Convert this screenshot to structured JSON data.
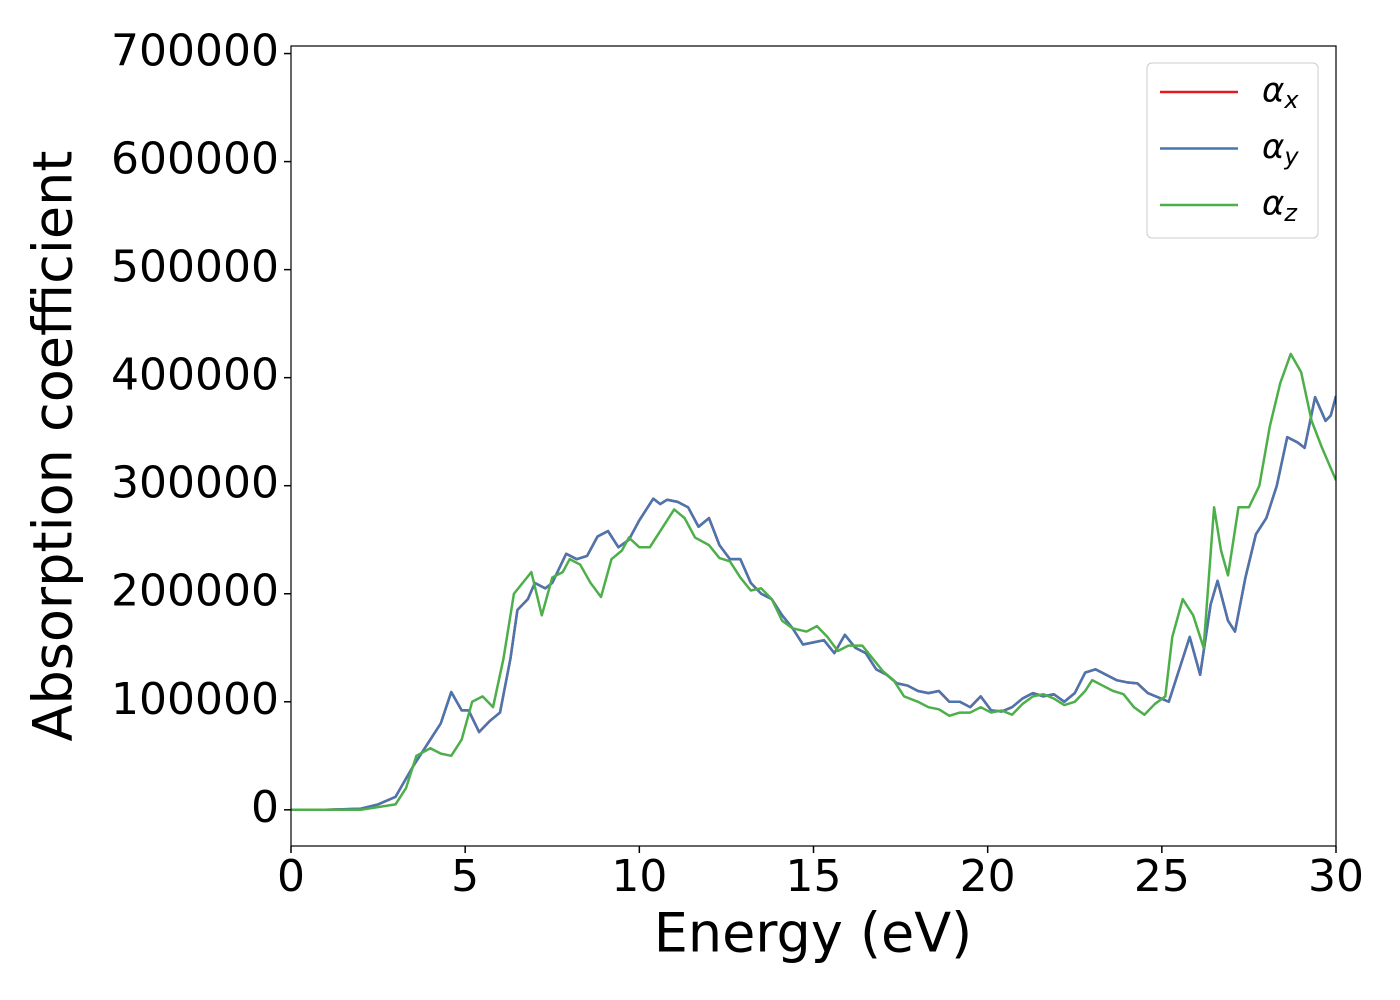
{
  "chart_data": {
    "type": "line",
    "xlabel": "Energy (eV)",
    "ylabel": "Absorption coefficient",
    "xlim": [
      0,
      30
    ],
    "ylim": [
      -33500,
      707000
    ],
    "xticks": [
      0,
      5,
      10,
      15,
      20,
      25,
      30
    ],
    "yticks": [
      0,
      100000,
      200000,
      300000,
      400000,
      500000,
      600000,
      700000
    ],
    "legend": "upper right",
    "series": [
      {
        "name": "αx",
        "color": "#e41a1c",
        "x": [
          0,
          1,
          2,
          2.5,
          3,
          3.5,
          4,
          4.3,
          4.6,
          4.9,
          5.1,
          5.4,
          5.7,
          6,
          6.3,
          6.5,
          6.8,
          7,
          7.3,
          7.5,
          7.9,
          8.2,
          8.5,
          8.8,
          9.1,
          9.4,
          9.7,
          10,
          10.4,
          10.6,
          10.8,
          11.1,
          11.4,
          11.7,
          12,
          12.3,
          12.6,
          12.9,
          13.2,
          13.5,
          13.8,
          14.1,
          14.4,
          14.7,
          15,
          15.3,
          15.6,
          15.9,
          16.2,
          16.5,
          16.8,
          17.1,
          17.4,
          17.7,
          18,
          18.3,
          18.6,
          18.9,
          19.2,
          19.5,
          19.8,
          20.1,
          20.4,
          20.7,
          21,
          21.3,
          21.6,
          21.9,
          22.2,
          22.5,
          22.8,
          23.1,
          23.4,
          23.7,
          24,
          24.3,
          24.6,
          24.9,
          25.2,
          25.5,
          25.8,
          26.1,
          26.4,
          26.6,
          26.9,
          27.1,
          27.4,
          27.7,
          28,
          28.3,
          28.6,
          28.9,
          29.1,
          29.4,
          29.7,
          29.85,
          30
        ],
        "values": [
          0,
          0,
          1000,
          5000,
          12000,
          40000,
          65000,
          80000,
          109000,
          92000,
          92000,
          72000,
          82000,
          90000,
          140000,
          185000,
          195000,
          210000,
          205000,
          210000,
          237000,
          232000,
          235000,
          253000,
          258000,
          243000,
          250000,
          268000,
          288000,
          283000,
          287000,
          285000,
          280000,
          262000,
          270000,
          245000,
          232000,
          232000,
          210000,
          200000,
          195000,
          180000,
          168000,
          153000,
          155000,
          157000,
          145000,
          162000,
          150000,
          145000,
          130000,
          125000,
          117000,
          115000,
          110000,
          108000,
          110000,
          100000,
          100000,
          95000,
          105000,
          92000,
          91000,
          95000,
          103000,
          108000,
          105000,
          107000,
          100000,
          108000,
          127000,
          130000,
          125000,
          120000,
          118000,
          117000,
          108000,
          104000,
          100000,
          130000,
          160000,
          125000,
          190000,
          212000,
          175000,
          165000,
          215000,
          255000,
          270000,
          300000,
          345000,
          340000,
          335000,
          382000,
          360000,
          365000,
          383000
        ]
      },
      {
        "name": "αy",
        "color": "#4a76b0",
        "x": [
          0,
          1,
          2,
          2.5,
          3,
          3.5,
          4,
          4.3,
          4.6,
          4.9,
          5.1,
          5.4,
          5.7,
          6,
          6.3,
          6.5,
          6.8,
          7,
          7.3,
          7.5,
          7.9,
          8.2,
          8.5,
          8.8,
          9.1,
          9.4,
          9.7,
          10,
          10.4,
          10.6,
          10.8,
          11.1,
          11.4,
          11.7,
          12,
          12.3,
          12.6,
          12.9,
          13.2,
          13.5,
          13.8,
          14.1,
          14.4,
          14.7,
          15,
          15.3,
          15.6,
          15.9,
          16.2,
          16.5,
          16.8,
          17.1,
          17.4,
          17.7,
          18,
          18.3,
          18.6,
          18.9,
          19.2,
          19.5,
          19.8,
          20.1,
          20.4,
          20.7,
          21,
          21.3,
          21.6,
          21.9,
          22.2,
          22.5,
          22.8,
          23.1,
          23.4,
          23.7,
          24,
          24.3,
          24.6,
          24.9,
          25.2,
          25.5,
          25.8,
          26.1,
          26.4,
          26.6,
          26.9,
          27.1,
          27.4,
          27.7,
          28,
          28.3,
          28.6,
          28.9,
          29.1,
          29.4,
          29.7,
          29.85,
          30
        ],
        "values": [
          0,
          0,
          1000,
          5000,
          12000,
          40000,
          65000,
          80000,
          109000,
          92000,
          92000,
          72000,
          82000,
          90000,
          140000,
          185000,
          195000,
          210000,
          205000,
          210000,
          237000,
          232000,
          235000,
          253000,
          258000,
          243000,
          250000,
          268000,
          288000,
          283000,
          287000,
          285000,
          280000,
          262000,
          270000,
          245000,
          232000,
          232000,
          210000,
          200000,
          195000,
          180000,
          168000,
          153000,
          155000,
          157000,
          145000,
          162000,
          150000,
          145000,
          130000,
          125000,
          117000,
          115000,
          110000,
          108000,
          110000,
          100000,
          100000,
          95000,
          105000,
          92000,
          91000,
          95000,
          103000,
          108000,
          105000,
          107000,
          100000,
          108000,
          127000,
          130000,
          125000,
          120000,
          118000,
          117000,
          108000,
          104000,
          100000,
          130000,
          160000,
          125000,
          190000,
          212000,
          175000,
          165000,
          215000,
          255000,
          270000,
          300000,
          345000,
          340000,
          335000,
          382000,
          360000,
          365000,
          383000
        ]
      },
      {
        "name": "αz",
        "color": "#4daf4a",
        "x": [
          0,
          2,
          3,
          3.3,
          3.6,
          4,
          4.3,
          4.6,
          4.9,
          5.2,
          5.5,
          5.8,
          6.1,
          6.4,
          6.7,
          6.9,
          7.2,
          7.5,
          7.8,
          8,
          8.3,
          8.6,
          8.9,
          9.2,
          9.5,
          9.7,
          10,
          10.3,
          10.6,
          11,
          11.3,
          11.6,
          12,
          12.3,
          12.6,
          12.9,
          13.2,
          13.5,
          13.8,
          14.1,
          14.4,
          14.8,
          15.1,
          15.4,
          15.7,
          16,
          16.4,
          16.7,
          17,
          17.3,
          17.6,
          18,
          18.3,
          18.6,
          18.9,
          19.2,
          19.5,
          19.8,
          20.1,
          20.4,
          20.7,
          21,
          21.3,
          21.6,
          21.9,
          22.2,
          22.5,
          22.8,
          23,
          23.3,
          23.6,
          23.9,
          24.2,
          24.5,
          24.8,
          25.1,
          25.3,
          25.6,
          25.9,
          26.2,
          26.5,
          26.7,
          26.9,
          27.2,
          27.5,
          27.8,
          28.1,
          28.4,
          28.7,
          29,
          29.3,
          29.6,
          29.8,
          30
        ],
        "values": [
          0,
          0,
          5000,
          20000,
          50000,
          57000,
          52000,
          50000,
          65000,
          100000,
          105000,
          95000,
          140000,
          200000,
          212000,
          220000,
          180000,
          215000,
          220000,
          232000,
          227000,
          210000,
          197000,
          232000,
          240000,
          252000,
          243000,
          243000,
          258000,
          278000,
          270000,
          252000,
          245000,
          233000,
          230000,
          215000,
          203000,
          205000,
          195000,
          175000,
          168000,
          165000,
          170000,
          160000,
          147000,
          152000,
          152000,
          140000,
          128000,
          120000,
          105000,
          100000,
          95000,
          93000,
          87000,
          90000,
          90000,
          95000,
          90000,
          92000,
          88000,
          98000,
          105000,
          107000,
          103000,
          97000,
          100000,
          110000,
          120000,
          115000,
          110000,
          107000,
          95000,
          88000,
          98000,
          105000,
          160000,
          195000,
          180000,
          150000,
          280000,
          240000,
          217000,
          280000,
          280000,
          300000,
          355000,
          395000,
          422000,
          405000,
          360000,
          335000,
          320000,
          305000
        ]
      }
    ]
  }
}
